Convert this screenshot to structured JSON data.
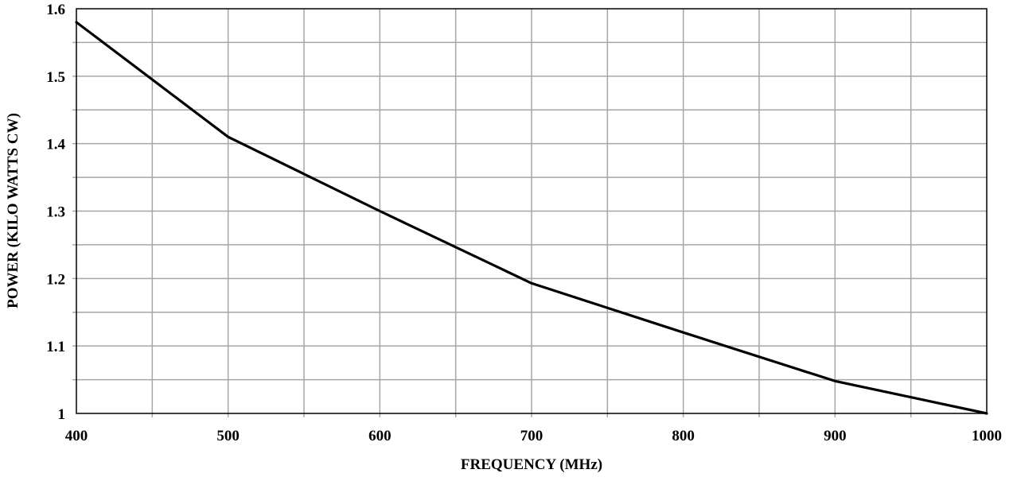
{
  "chart_data": {
    "type": "line",
    "title": "",
    "xlabel": "FREQUENCY (MHz)",
    "ylabel": "POWER (KILO WATTS CW)",
    "xlim": [
      400,
      1000
    ],
    "ylim": [
      1,
      1.6
    ],
    "x_ticks": [
      400,
      500,
      600,
      700,
      800,
      900,
      1000
    ],
    "x_tick_labels": [
      "400",
      "500",
      "600",
      "700",
      "800",
      "900",
      "1000"
    ],
    "y_ticks": [
      1,
      1.1,
      1.2,
      1.3,
      1.4,
      1.5,
      1.6
    ],
    "y_tick_labels": [
      "1",
      "1.1",
      "1.2",
      "1.3",
      "1.4",
      "1.5",
      "1.6"
    ],
    "x_minor_step": 50,
    "y_minor_step": 0.05,
    "grid": true,
    "series": [
      {
        "x": [
          400,
          500,
          600,
          700,
          800,
          900,
          1000
        ],
        "y": [
          1.58,
          1.41,
          1.3,
          1.193,
          1.12,
          1.048,
          1.0
        ],
        "color": "#000000"
      }
    ]
  }
}
